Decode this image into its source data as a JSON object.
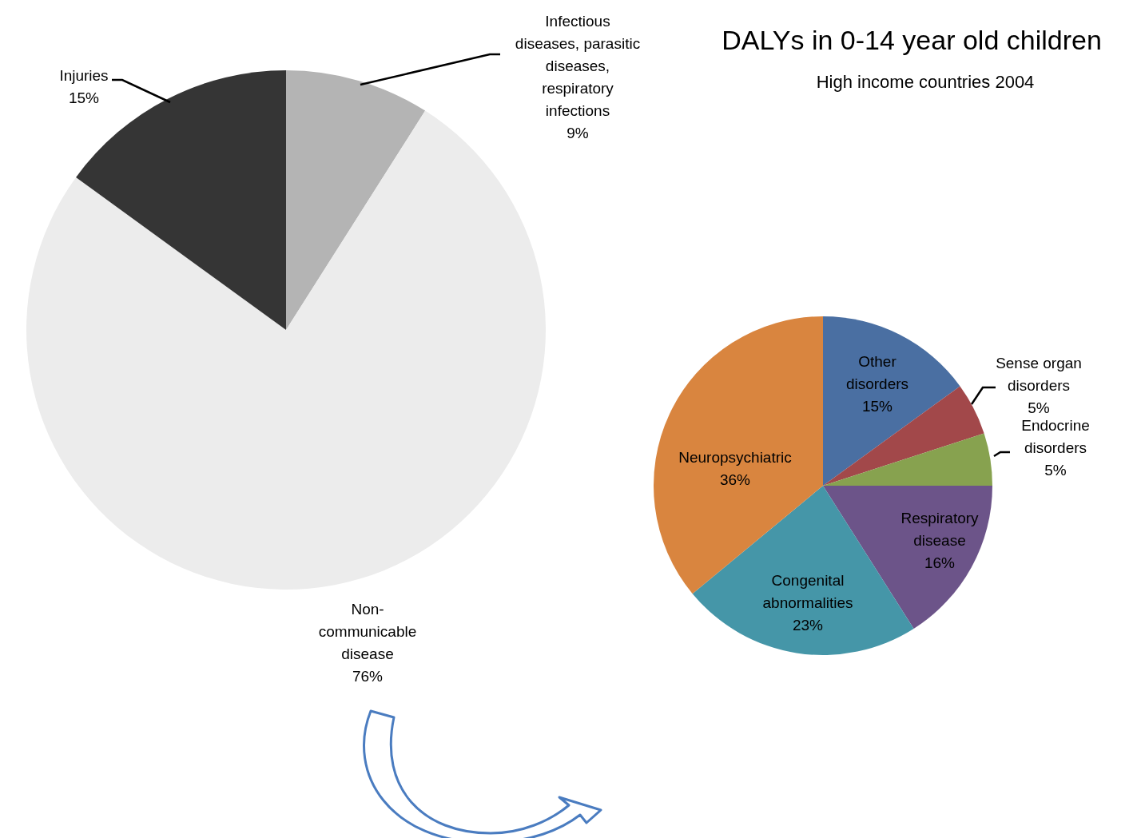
{
  "chart_data": [
    {
      "type": "pie",
      "categories": [
        "Infectious diseases, parasitic diseases, respiratory infections",
        "Non-communicable disease",
        "Injuries"
      ],
      "values": [
        9,
        76,
        15
      ],
      "colors": [
        "#b4b4b4",
        "#ececec",
        "#353535"
      ],
      "value_labels": [
        "9%",
        "76%",
        "15%"
      ]
    },
    {
      "type": "pie",
      "title": "DALYs in 0-14 year old children",
      "subtitle": "High income countries 2004",
      "categories": [
        "Other disorders",
        "Sense organ disorders",
        "Endocrine disorders",
        "Respiratory disease",
        "Congenital abnormalities",
        "Neuropsychiatric"
      ],
      "values": [
        15,
        5,
        5,
        16,
        23,
        36
      ],
      "colors": [
        "#4a6fa2",
        "#a2484a",
        "#87a24f",
        "#6c5489",
        "#4596a8",
        "#d9853f"
      ],
      "value_labels": [
        "15%",
        "5%",
        "5%",
        "16%",
        "23%",
        "36%"
      ]
    }
  ]
}
